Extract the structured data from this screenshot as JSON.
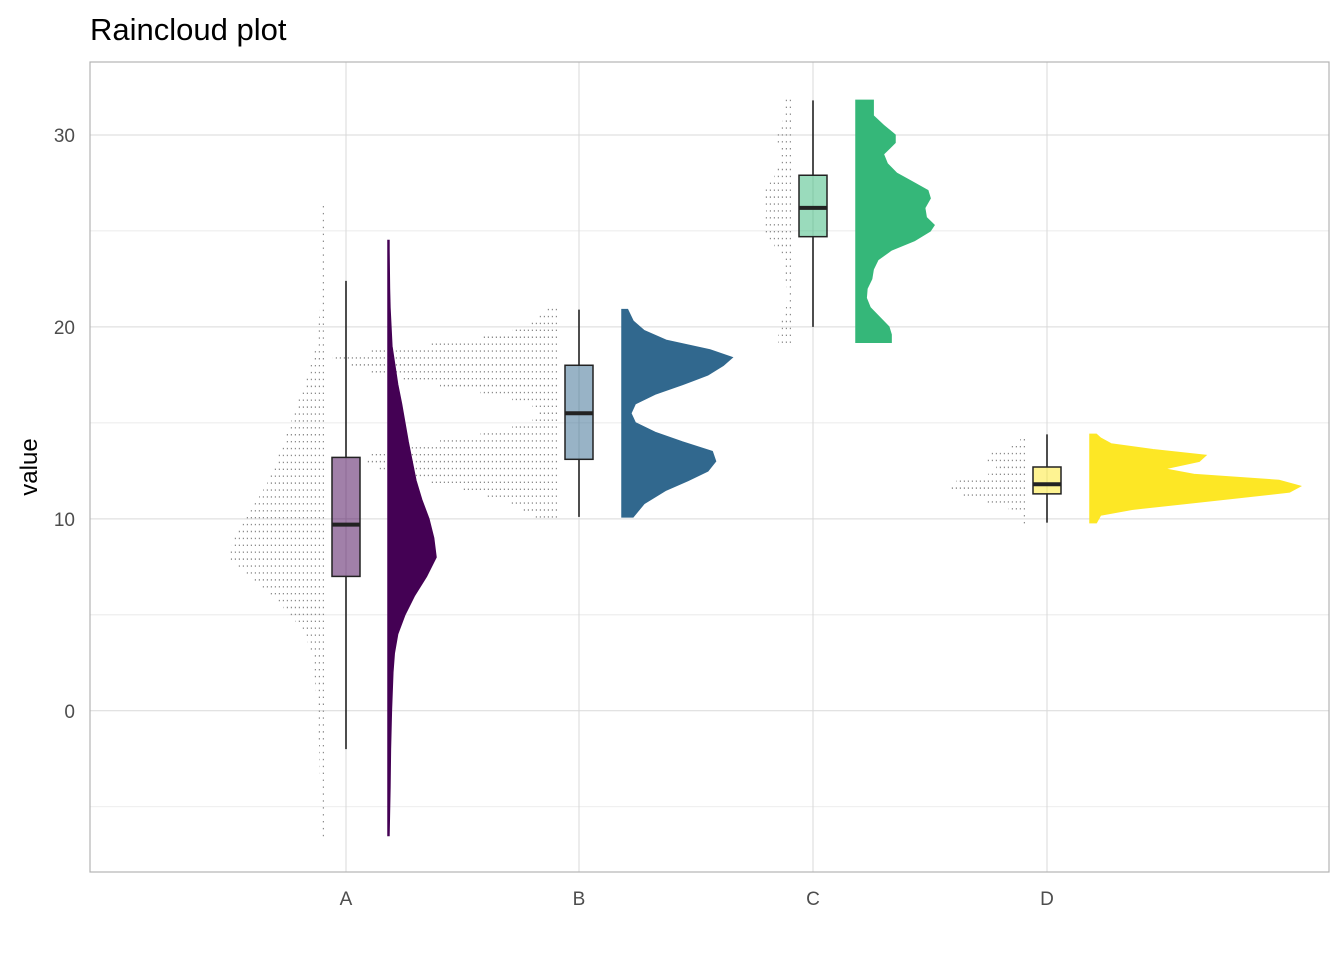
{
  "chart_data": {
    "type": "raincloud",
    "title": "Raincloud plot",
    "xlabel": "",
    "ylabel": "value",
    "categories": [
      "A",
      "B",
      "C",
      "D"
    ],
    "y_ticks": [
      0,
      10,
      20,
      30
    ],
    "ylim": [
      -8.4,
      33.8
    ],
    "grid": true,
    "legend": "none",
    "series": [
      {
        "category": "A",
        "color": "#440154",
        "box": {
          "min": -2.0,
          "q1": 7.0,
          "median": 9.7,
          "q3": 13.2,
          "max": 22.4
        },
        "range": [
          -6.5,
          26.5
        ],
        "density": [
          [
            -6.5,
            0.02
          ],
          [
            -4,
            0.04
          ],
          [
            -2,
            0.05
          ],
          [
            0,
            0.07
          ],
          [
            2,
            0.1
          ],
          [
            3,
            0.13
          ],
          [
            4,
            0.2
          ],
          [
            5,
            0.35
          ],
          [
            6,
            0.55
          ],
          [
            7,
            0.8
          ],
          [
            8,
            1.0
          ],
          [
            9,
            0.95
          ],
          [
            10,
            0.85
          ],
          [
            11,
            0.7
          ],
          [
            12,
            0.58
          ],
          [
            13,
            0.5
          ],
          [
            14,
            0.42
          ],
          [
            15,
            0.35
          ],
          [
            16,
            0.28
          ],
          [
            17,
            0.2
          ],
          [
            18,
            0.14
          ],
          [
            19,
            0.08
          ],
          [
            20,
            0.06
          ],
          [
            21,
            0.04
          ],
          [
            22,
            0.03
          ],
          [
            24,
            0.02
          ],
          [
            24.5,
            0.02
          ]
        ]
      },
      {
        "category": "B",
        "color": "#31688e",
        "box": {
          "min": 10.1,
          "q1": 13.1,
          "median": 15.5,
          "q3": 18.0,
          "max": 20.9
        },
        "range": [
          10.1,
          20.9
        ],
        "density": [
          [
            10.1,
            0.1
          ],
          [
            10.8,
            0.2
          ],
          [
            11.5,
            0.4
          ],
          [
            12.0,
            0.6
          ],
          [
            12.5,
            0.78
          ],
          [
            13.0,
            0.85
          ],
          [
            13.5,
            0.82
          ],
          [
            14.0,
            0.55
          ],
          [
            14.5,
            0.3
          ],
          [
            15.0,
            0.12
          ],
          [
            15.5,
            0.08
          ],
          [
            16.0,
            0.12
          ],
          [
            16.5,
            0.3
          ],
          [
            17.0,
            0.55
          ],
          [
            17.5,
            0.78
          ],
          [
            18.0,
            0.92
          ],
          [
            18.4,
            1.0
          ],
          [
            18.8,
            0.8
          ],
          [
            19.3,
            0.4
          ],
          [
            19.8,
            0.2
          ],
          [
            20.3,
            0.1
          ],
          [
            20.9,
            0.05
          ]
        ]
      },
      {
        "category": "C",
        "color": "#35b779",
        "box": {
          "min": 20.0,
          "q1": 24.7,
          "median": 26.2,
          "q3": 27.9,
          "max": 31.8
        },
        "range": [
          19.2,
          31.8
        ],
        "density": [
          [
            19.2,
            0.45
          ],
          [
            19.6,
            0.45
          ],
          [
            20.0,
            0.42
          ],
          [
            20.5,
            0.3
          ],
          [
            21.0,
            0.18
          ],
          [
            21.5,
            0.13
          ],
          [
            22.0,
            0.14
          ],
          [
            22.5,
            0.2
          ],
          [
            23.0,
            0.22
          ],
          [
            23.5,
            0.28
          ],
          [
            24.0,
            0.45
          ],
          [
            24.5,
            0.75
          ],
          [
            25.0,
            0.95
          ],
          [
            25.3,
            1.0
          ],
          [
            25.7,
            0.9
          ],
          [
            26.2,
            0.88
          ],
          [
            26.7,
            0.95
          ],
          [
            27.1,
            0.92
          ],
          [
            27.6,
            0.7
          ],
          [
            28.0,
            0.52
          ],
          [
            28.5,
            0.4
          ],
          [
            29.0,
            0.35
          ],
          [
            29.6,
            0.5
          ],
          [
            30.0,
            0.5
          ],
          [
            30.5,
            0.35
          ],
          [
            31.0,
            0.22
          ],
          [
            31.5,
            0.22
          ],
          [
            31.8,
            0.22
          ]
        ]
      },
      {
        "category": "D",
        "color": "#fde725",
        "box": {
          "min": 9.8,
          "q1": 11.3,
          "median": 11.8,
          "q3": 12.7,
          "max": 14.4
        },
        "range": [
          9.8,
          14.4
        ],
        "density": [
          [
            9.8,
            0.03
          ],
          [
            10.2,
            0.05
          ],
          [
            10.5,
            0.2
          ],
          [
            10.8,
            0.45
          ],
          [
            11.1,
            0.7
          ],
          [
            11.4,
            0.95
          ],
          [
            11.7,
            1.0
          ],
          [
            12.0,
            0.9
          ],
          [
            12.3,
            0.5
          ],
          [
            12.6,
            0.35
          ],
          [
            13.0,
            0.52
          ],
          [
            13.3,
            0.55
          ],
          [
            13.6,
            0.3
          ],
          [
            13.9,
            0.1
          ],
          [
            14.2,
            0.05
          ],
          [
            14.4,
            0.03
          ]
        ]
      }
    ]
  }
}
